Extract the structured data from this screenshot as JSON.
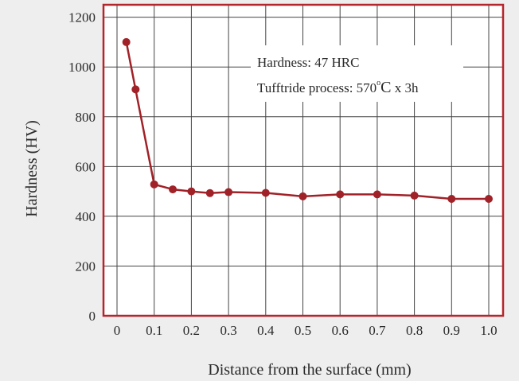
{
  "chart_data": {
    "type": "line",
    "title": "",
    "xlabel": "Distance from the surface (mm)",
    "ylabel": "Hardness (HV)",
    "x_ticks": [
      "0",
      "0.1",
      "0.2",
      "0.3",
      "0.4",
      "0.5",
      "0.6",
      "0.7",
      "0.8",
      "0.9",
      "1.0"
    ],
    "y_ticks": [
      "0",
      "200",
      "400",
      "600",
      "800",
      "1000",
      "1200"
    ],
    "ylim": [
      0,
      1250
    ],
    "grid": true,
    "series": [
      {
        "x": [
          0.025,
          0.05,
          0.1,
          0.15,
          0.2,
          0.25,
          0.3,
          0.4,
          0.5,
          0.6,
          0.7,
          0.8,
          0.9,
          1.0
        ],
        "values": [
          1100,
          910,
          528,
          508,
          500,
          493,
          497,
          494,
          480,
          488,
          488,
          483,
          470,
          470
        ]
      }
    ],
    "annotation": {
      "line1": "Hardness: 47 HRC",
      "line2_prefix": "Tufftride process: 570",
      "line2_degree": "o",
      "line2_unit": "C",
      "line2_suffix": " x 3h"
    },
    "colors": {
      "series": "#a02228",
      "frame": "#b5262c",
      "grid": "#444444",
      "background": "#eeeeef",
      "plot_background": "#ffffff"
    }
  }
}
